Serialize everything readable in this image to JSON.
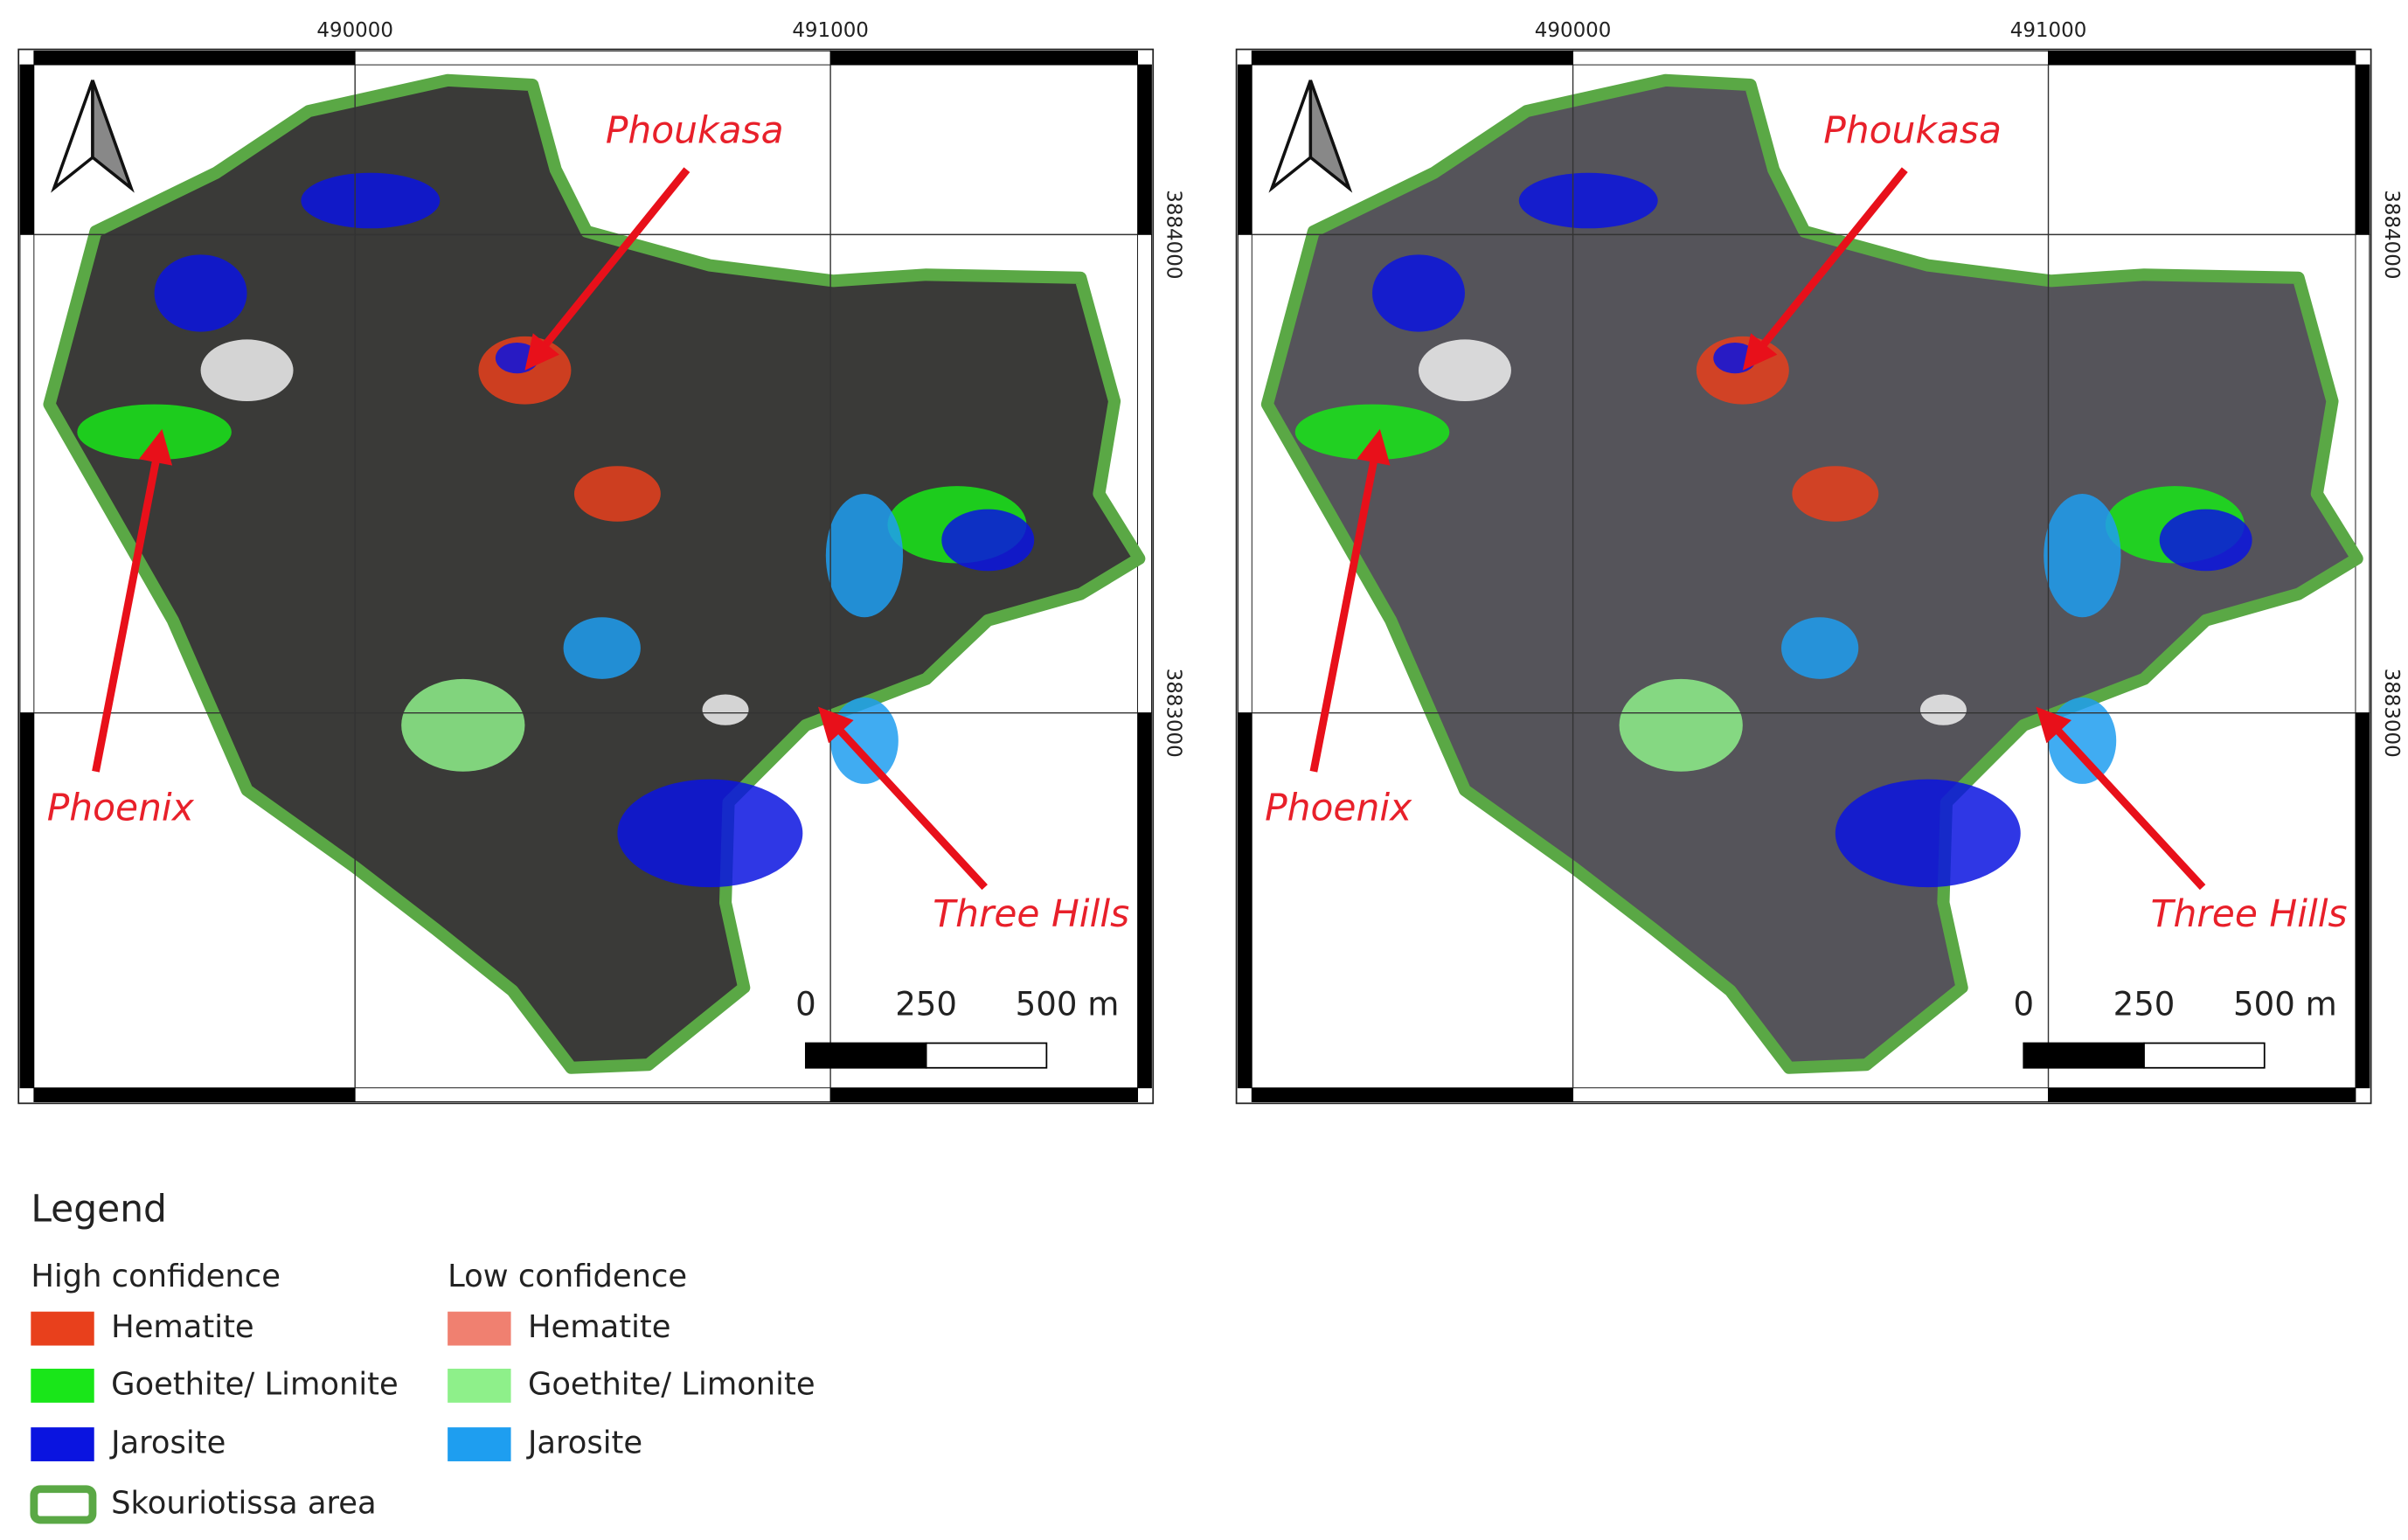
{
  "maps": [
    {
      "x_labels": [
        "490000",
        "491000"
      ],
      "y_labels": [
        "3884000",
        "3883000"
      ],
      "places": [
        "Phoukasa",
        "Phoenix",
        "Three Hills"
      ],
      "scale_labels": [
        "0",
        "250",
        "500 m"
      ]
    },
    {
      "x_labels": [
        "490000",
        "491000"
      ],
      "y_labels": [
        "3884000",
        "3883000"
      ],
      "places": [
        "Phoukasa",
        "Phoenix",
        "Three Hills"
      ],
      "scale_labels": [
        "0",
        "250",
        "500 m"
      ]
    }
  ],
  "legend": {
    "title": "Legend",
    "groups": [
      {
        "title": "High confidence",
        "items": [
          {
            "label": "Hematite",
            "color": "#e8401c"
          },
          {
            "label": "Goethite/ Limonite",
            "color": "#19e619"
          },
          {
            "label": "Jarosite",
            "color": "#0a14e0"
          }
        ]
      },
      {
        "title": "Low confidence",
        "items": [
          {
            "label": "Hematite",
            "color": "#f08070"
          },
          {
            "label": "Goethite/ Limonite",
            "color": "#8ef08a"
          },
          {
            "label": "Jarosite",
            "color": "#1e9ef0"
          }
        ]
      }
    ],
    "boundary": {
      "label": "Skouriotissa area",
      "color": "#5aa845"
    }
  }
}
